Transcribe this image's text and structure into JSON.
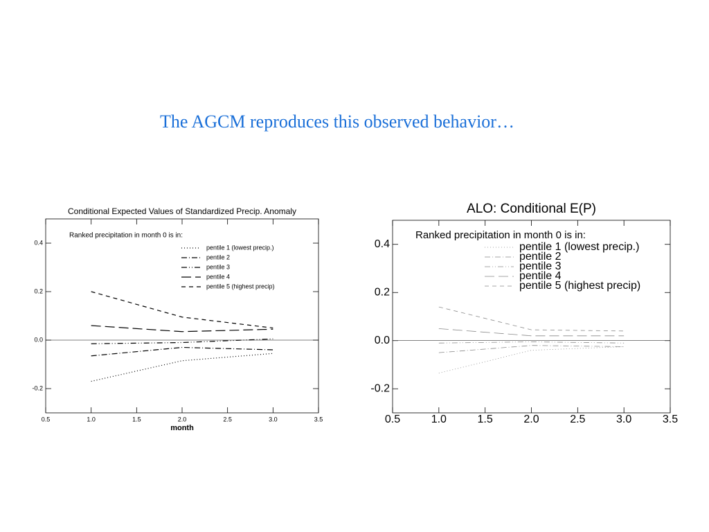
{
  "slide": {
    "title": "The AGCM reproduces this observed behavior…"
  },
  "chart_data": [
    {
      "type": "line",
      "title": "Conditional Expected Values of Standardized Precip. Anomaly",
      "xlabel": "month",
      "legend_title": "Ranked precipitation in month 0 is in:",
      "x": [
        1,
        2,
        3
      ],
      "series": [
        {
          "name": "pentile 1 (lowest precip.)",
          "color": "#000000",
          "dash": "dotted",
          "values": [
            -0.17,
            -0.085,
            -0.055
          ]
        },
        {
          "name": "pentile 2",
          "color": "#000000",
          "dash": "dash-dot",
          "values": [
            -0.065,
            -0.03,
            -0.04
          ]
        },
        {
          "name": "pentile 3",
          "color": "#000000",
          "dash": "dash-dot-dot",
          "values": [
            -0.015,
            -0.01,
            0.005
          ]
        },
        {
          "name": "pentile 4",
          "color": "#000000",
          "dash": "long-dash",
          "values": [
            0.06,
            0.035,
            0.045
          ]
        },
        {
          "name": "pentile 5 (highest precip)",
          "color": "#000000",
          "dash": "dash",
          "values": [
            0.2,
            0.095,
            0.05
          ]
        }
      ],
      "xlim": [
        0.5,
        3.5
      ],
      "xticks": [
        0.5,
        {
          "value": 1,
          "label": "1.0"
        },
        1.5,
        {
          "value": 2,
          "label": "2.0"
        },
        2.5,
        {
          "value": 3,
          "label": "3.0"
        },
        3.5
      ],
      "ylim": [
        -0.3,
        0.5
      ],
      "yticks": [
        -0.2,
        {
          "value": 0,
          "label": "0.0"
        },
        0.2,
        0.4
      ]
    },
    {
      "type": "line",
      "title": "ALO: Conditional E(P)",
      "legend_title": "Ranked precipitation in month 0 is in:",
      "x": [
        1,
        2,
        3
      ],
      "series": [
        {
          "name": "pentile 1 (lowest precip.)",
          "color": "#888888",
          "dash": "dotted",
          "values": [
            -0.135,
            -0.04,
            -0.025
          ]
        },
        {
          "name": "pentile 2",
          "color": "#888888",
          "dash": "dash-dot",
          "values": [
            -0.05,
            -0.02,
            -0.025
          ]
        },
        {
          "name": "pentile 3",
          "color": "#888888",
          "dash": "dash-dot-dot",
          "values": [
            -0.01,
            -0.005,
            -0.01
          ]
        },
        {
          "name": "pentile 4",
          "color": "#888888",
          "dash": "long-dash",
          "values": [
            0.05,
            0.02,
            0.02
          ]
        },
        {
          "name": "pentile 5 (highest precip)",
          "color": "#888888",
          "dash": "dash",
          "values": [
            0.14,
            0.045,
            0.04
          ]
        }
      ],
      "xlim": [
        0.5,
        3.5
      ],
      "xticks": [
        0.5,
        {
          "value": 1,
          "label": "1.0"
        },
        1.5,
        {
          "value": 2,
          "label": "2.0"
        },
        2.5,
        {
          "value": 3,
          "label": "3.0"
        },
        3.5
      ],
      "ylim": [
        -0.3,
        0.5
      ],
      "yticks": [
        -0.2,
        {
          "value": 0,
          "label": "0.0"
        },
        0.2,
        0.4
      ]
    }
  ]
}
